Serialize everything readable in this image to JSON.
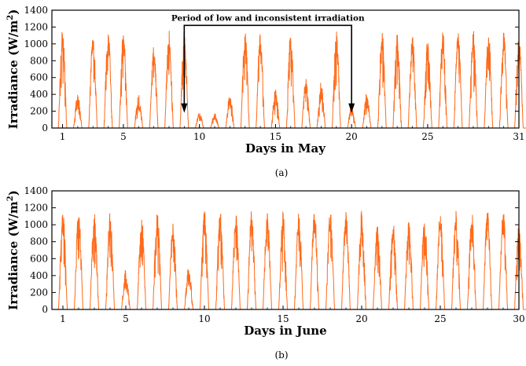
{
  "chart_data": [
    {
      "type": "line",
      "panel_label": "(a)",
      "xlabel": "Days in May",
      "ylabel": "Irradiance (W/m",
      "ylabel_sup": "2",
      "ylabel_close": ")",
      "xlim": [
        0.3,
        31
      ],
      "ylim": [
        0,
        1400
      ],
      "xticks": [
        1,
        5,
        10,
        15,
        20,
        25,
        31
      ],
      "yticks": [
        0,
        200,
        400,
        600,
        800,
        1000,
        1200,
        1400
      ],
      "series_color": "#ff6a1a",
      "daily_peaks": [
        1170,
        400,
        1170,
        1170,
        1170,
        400,
        980,
        1170,
        1170,
        200,
        180,
        400,
        1170,
        1170,
        480,
        1170,
        610,
        550,
        1170,
        260,
        420,
        1170,
        1120,
        1100,
        1050,
        1170,
        1170,
        1170,
        1170,
        1170,
        1170
      ],
      "annotation": {
        "text": "Period of low and inconsistent irradiation",
        "x_start": 9,
        "x_end": 20,
        "arrow_tip_y": 200,
        "bracket_y": 1220
      }
    },
    {
      "type": "line",
      "panel_label": "(b)",
      "xlabel": "Days in June",
      "ylabel": "Irradiance (W/m",
      "ylabel_sup": "2",
      "ylabel_close": ")",
      "xlim": [
        0.3,
        30
      ],
      "ylim": [
        0,
        1400
      ],
      "xticks": [
        1,
        5,
        10,
        15,
        20,
        25,
        30
      ],
      "yticks": [
        0,
        200,
        400,
        600,
        800,
        1000,
        1200,
        1400
      ],
      "series_color": "#ff6a1a",
      "daily_peaks": [
        1170,
        1170,
        1170,
        1170,
        480,
        1120,
        1170,
        1060,
        530,
        1170,
        1170,
        1170,
        1170,
        1170,
        1170,
        1170,
        1170,
        1170,
        1170,
        1170,
        1000,
        1050,
        1100,
        1150,
        1170,
        1170,
        1170,
        1170,
        1170,
        1000
      ]
    }
  ]
}
